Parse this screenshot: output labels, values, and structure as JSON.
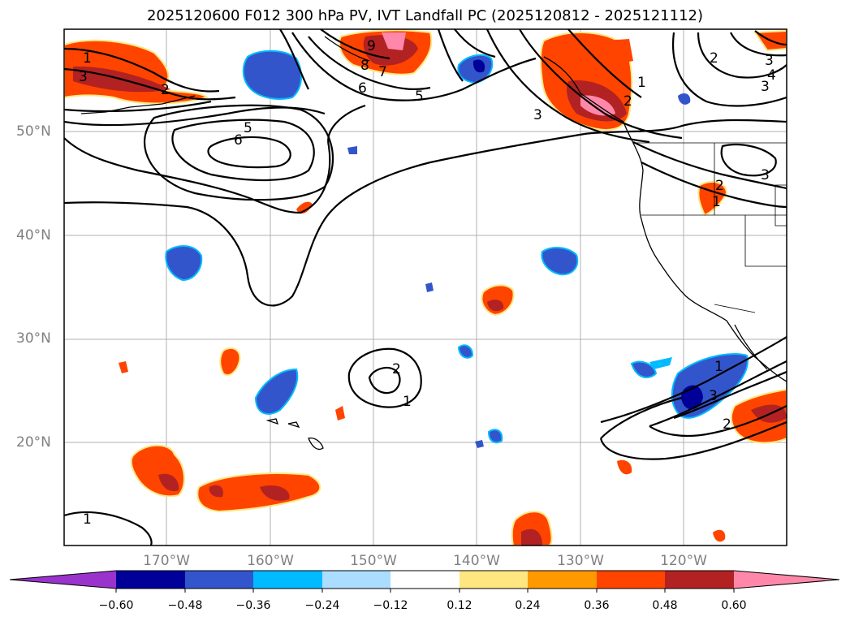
{
  "title": "2025120600 F012 300 hPa PV, IVT Landfall PC (2025120812 - 2025121112)",
  "lat_labels": [
    "50°N",
    "40°N",
    "30°N",
    "20°N"
  ],
  "lon_labels": [
    "170°W",
    "160°W",
    "150°W",
    "140°W",
    "130°W",
    "120°W"
  ],
  "colorbar": {
    "ticks": [
      "−0.60",
      "−0.48",
      "−0.36",
      "−0.24",
      "−0.12",
      "0.12",
      "0.24",
      "0.36",
      "0.48",
      "0.60"
    ],
    "colors": [
      "#9933cc",
      "#000099",
      "#3355cc",
      "#00bbff",
      "#aaddff",
      "#ffffff",
      "#ffe680",
      "#ff9900",
      "#ff4400",
      "#b22222",
      "#ff88aa"
    ]
  },
  "contour_labels": [
    "1",
    "3",
    "2",
    "9",
    "8",
    "7",
    "6",
    "5",
    "2",
    "3",
    "4",
    "3",
    "1",
    "2",
    "3",
    "5",
    "6",
    "3",
    "2",
    "1",
    "2",
    "1",
    "1",
    "3",
    "2",
    "1"
  ],
  "palette": {
    "neg_strong": "#000099",
    "neg_mid": "#3355cc",
    "neg_light": "#00bbff",
    "pos_light": "#ffe680",
    "pos_orange": "#ff9900",
    "pos_red": "#ff4400",
    "pos_dark": "#b22222",
    "pos_pink": "#ff88aa"
  }
}
